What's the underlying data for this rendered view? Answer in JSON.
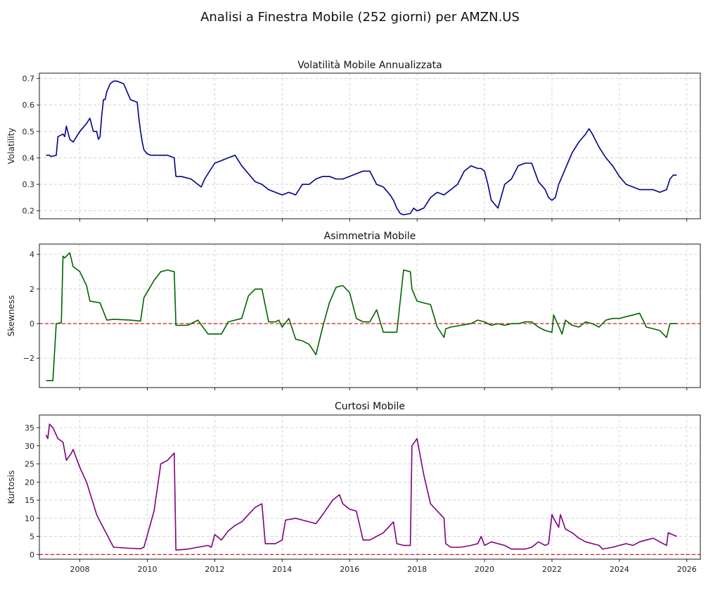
{
  "figure": {
    "title": "Analisi a Finestra Mobile (252 giorni) per AMZN.US"
  },
  "chart_data": [
    {
      "type": "line",
      "title": "Volatilità Mobile Annualizzata",
      "xlabel": "",
      "ylabel": "Volatility",
      "xlim": [
        2006.8,
        2026.4
      ],
      "ylim": [
        0.17,
        0.72
      ],
      "yticks": [
        0.2,
        0.3,
        0.4,
        0.5,
        0.6,
        0.7
      ],
      "ytick_labels": [
        "0.2",
        "0.3",
        "0.4",
        "0.5",
        "0.6",
        "0.7"
      ],
      "xticks": [
        2008,
        2010,
        2012,
        2014,
        2016,
        2018,
        2020,
        2022,
        2024,
        2026
      ],
      "xtick_labels": [],
      "grid": true,
      "color": "#00008b",
      "series": [
        {
          "x": [
            2007.0,
            2007.1,
            2007.15,
            2007.3,
            2007.35,
            2007.5,
            2007.55,
            2007.6,
            2007.7,
            2007.8,
            2007.9,
            2008.0,
            2008.2,
            2008.3,
            2008.4,
            2008.5,
            2008.55,
            2008.6,
            2008.65,
            2008.7,
            2008.75,
            2008.8,
            2008.9,
            2009.0,
            2009.1,
            2009.2,
            2009.3,
            2009.5,
            2009.7,
            2009.75,
            2009.8,
            2009.85,
            2009.9,
            2010.0,
            2010.1,
            2010.2,
            2010.4,
            2010.6,
            2010.8,
            2010.85,
            2011.0,
            2011.3,
            2011.5,
            2011.6,
            2011.7,
            2011.8,
            2012.0,
            2012.2,
            2012.4,
            2012.6,
            2012.8,
            2013.0,
            2013.2,
            2013.4,
            2013.6,
            2013.8,
            2014.0,
            2014.2,
            2014.4,
            2014.6,
            2014.8,
            2015.0,
            2015.2,
            2015.4,
            2015.6,
            2015.8,
            2016.0,
            2016.2,
            2016.4,
            2016.6,
            2016.8,
            2017.0,
            2017.2,
            2017.3,
            2017.4,
            2017.5,
            2017.6,
            2017.8,
            2017.9,
            2018.0,
            2018.2,
            2018.4,
            2018.6,
            2018.8,
            2019.0,
            2019.2,
            2019.4,
            2019.6,
            2019.8,
            2019.9,
            2020.0,
            2020.1,
            2020.2,
            2020.4,
            2020.6,
            2020.8,
            2021.0,
            2021.2,
            2021.4,
            2021.6,
            2021.8,
            2021.9,
            2022.0,
            2022.1,
            2022.2,
            2022.4,
            2022.6,
            2022.8,
            2023.0,
            2023.1,
            2023.2,
            2023.4,
            2023.6,
            2023.8,
            2024.0,
            2024.2,
            2024.4,
            2024.6,
            2024.8,
            2025.0,
            2025.2,
            2025.4,
            2025.5,
            2025.6,
            2025.7
          ],
          "y": [
            0.41,
            0.41,
            0.405,
            0.41,
            0.48,
            0.49,
            0.48,
            0.52,
            0.47,
            0.46,
            0.48,
            0.5,
            0.53,
            0.55,
            0.5,
            0.5,
            0.47,
            0.48,
            0.56,
            0.62,
            0.62,
            0.65,
            0.68,
            0.69,
            0.69,
            0.685,
            0.68,
            0.62,
            0.61,
            0.55,
            0.5,
            0.46,
            0.43,
            0.415,
            0.41,
            0.41,
            0.41,
            0.41,
            0.4,
            0.33,
            0.33,
            0.32,
            0.3,
            0.29,
            0.32,
            0.34,
            0.38,
            0.39,
            0.4,
            0.41,
            0.37,
            0.34,
            0.31,
            0.3,
            0.28,
            0.27,
            0.26,
            0.27,
            0.26,
            0.3,
            0.3,
            0.32,
            0.33,
            0.33,
            0.32,
            0.32,
            0.33,
            0.34,
            0.35,
            0.35,
            0.3,
            0.29,
            0.26,
            0.24,
            0.21,
            0.19,
            0.185,
            0.19,
            0.21,
            0.2,
            0.21,
            0.25,
            0.27,
            0.26,
            0.28,
            0.3,
            0.35,
            0.37,
            0.36,
            0.36,
            0.35,
            0.3,
            0.24,
            0.21,
            0.3,
            0.32,
            0.37,
            0.38,
            0.38,
            0.31,
            0.28,
            0.25,
            0.24,
            0.25,
            0.3,
            0.36,
            0.42,
            0.46,
            0.49,
            0.51,
            0.49,
            0.44,
            0.4,
            0.37,
            0.33,
            0.3,
            0.29,
            0.28,
            0.28,
            0.28,
            0.27,
            0.28,
            0.32,
            0.335,
            0.335
          ]
        }
      ]
    },
    {
      "type": "line",
      "title": "Asimmetria Mobile",
      "xlabel": "",
      "ylabel": "Skewness",
      "xlim": [
        2006.8,
        2026.4
      ],
      "ylim": [
        -3.7,
        4.6
      ],
      "yticks": [
        -2,
        0,
        2,
        4
      ],
      "ytick_labels": [
        "−2",
        "0",
        "2",
        "4"
      ],
      "xticks": [
        2008,
        2010,
        2012,
        2014,
        2016,
        2018,
        2020,
        2022,
        2024,
        2026
      ],
      "xtick_labels": [],
      "grid": true,
      "color": "#006400",
      "reference_line": {
        "y": 0,
        "color": "#e00000",
        "style": "dashed"
      },
      "series": [
        {
          "x": [
            2007.0,
            2007.2,
            2007.3,
            2007.45,
            2007.5,
            2007.55,
            2007.7,
            2007.8,
            2008.0,
            2008.2,
            2008.3,
            2008.6,
            2008.8,
            2009.0,
            2009.5,
            2009.8,
            2009.9,
            2010.2,
            2010.4,
            2010.6,
            2010.8,
            2010.85,
            2011.2,
            2011.5,
            2011.8,
            2012.0,
            2012.2,
            2012.4,
            2012.6,
            2012.8,
            2013.0,
            2013.2,
            2013.4,
            2013.6,
            2013.8,
            2013.9,
            2014.0,
            2014.2,
            2014.4,
            2014.6,
            2014.8,
            2015.0,
            2015.2,
            2015.4,
            2015.6,
            2015.8,
            2016.0,
            2016.2,
            2016.4,
            2016.6,
            2016.8,
            2017.0,
            2017.2,
            2017.4,
            2017.6,
            2017.8,
            2017.85,
            2018.0,
            2018.2,
            2018.4,
            2018.6,
            2018.8,
            2018.85,
            2019.0,
            2019.3,
            2019.6,
            2019.8,
            2020.0,
            2020.2,
            2020.4,
            2020.6,
            2020.8,
            2021.0,
            2021.2,
            2021.4,
            2021.6,
            2021.8,
            2022.0,
            2022.05,
            2022.3,
            2022.4,
            2022.6,
            2022.8,
            2023.0,
            2023.2,
            2023.4,
            2023.6,
            2023.8,
            2024.0,
            2024.2,
            2024.4,
            2024.6,
            2024.8,
            2025.0,
            2025.2,
            2025.4,
            2025.5,
            2025.7
          ],
          "y": [
            -3.3,
            -3.3,
            0.0,
            0.05,
            3.9,
            3.8,
            4.1,
            3.3,
            3.0,
            2.2,
            1.3,
            1.2,
            0.2,
            0.25,
            0.2,
            0.15,
            1.5,
            2.5,
            3.0,
            3.1,
            3.0,
            -0.1,
            -0.1,
            0.2,
            -0.6,
            -0.6,
            -0.6,
            0.1,
            0.2,
            0.3,
            1.6,
            2.0,
            2.0,
            0.1,
            0.1,
            0.2,
            -0.2,
            0.3,
            -0.9,
            -1.0,
            -1.2,
            -1.8,
            -0.2,
            1.2,
            2.1,
            2.2,
            1.8,
            0.3,
            0.1,
            0.1,
            0.8,
            -0.5,
            -0.5,
            -0.5,
            3.1,
            3.0,
            2.0,
            1.3,
            1.2,
            1.1,
            -0.2,
            -0.8,
            -0.3,
            -0.2,
            -0.1,
            0.0,
            0.2,
            0.1,
            -0.1,
            0.0,
            -0.1,
            0.0,
            0.0,
            0.1,
            0.1,
            -0.2,
            -0.4,
            -0.5,
            0.5,
            -0.6,
            0.2,
            -0.1,
            -0.2,
            0.1,
            0.0,
            -0.2,
            0.2,
            0.3,
            0.3,
            0.4,
            0.5,
            0.6,
            -0.2,
            -0.3,
            -0.4,
            -0.8,
            0.0,
            0.0
          ]
        }
      ]
    },
    {
      "type": "line",
      "title": "Curtosi Mobile",
      "xlabel": "",
      "ylabel": "Kurtosis",
      "xlim": [
        2006.8,
        2026.4
      ],
      "ylim": [
        -1.3,
        38.5
      ],
      "yticks": [
        0,
        5,
        10,
        15,
        20,
        25,
        30,
        35
      ],
      "ytick_labels": [
        "0",
        "5",
        "10",
        "15",
        "20",
        "25",
        "30",
        "35"
      ],
      "xticks": [
        2008,
        2010,
        2012,
        2014,
        2016,
        2018,
        2020,
        2022,
        2024,
        2026
      ],
      "xtick_labels": [
        "2008",
        "2010",
        "2012",
        "2014",
        "2016",
        "2018",
        "2020",
        "2022",
        "2024",
        "2026"
      ],
      "grid": true,
      "color": "#800080",
      "reference_line": {
        "y": 0,
        "color": "#e00000",
        "style": "dashed"
      },
      "series": [
        {
          "x": [
            2007.0,
            2007.05,
            2007.1,
            2007.2,
            2007.3,
            2007.35,
            2007.5,
            2007.6,
            2007.75,
            2007.8,
            2008.0,
            2008.2,
            2008.3,
            2008.5,
            2008.55,
            2009.0,
            2009.5,
            2009.8,
            2009.9,
            2010.2,
            2010.4,
            2010.6,
            2010.8,
            2010.85,
            2011.2,
            2011.5,
            2011.8,
            2011.9,
            2012.0,
            2012.2,
            2012.4,
            2012.6,
            2012.8,
            2013.0,
            2013.2,
            2013.4,
            2013.5,
            2013.8,
            2014.0,
            2014.1,
            2014.4,
            2014.6,
            2014.8,
            2015.0,
            2015.2,
            2015.5,
            2015.7,
            2015.8,
            2016.0,
            2016.2,
            2016.4,
            2016.6,
            2016.8,
            2017.0,
            2017.2,
            2017.3,
            2017.4,
            2017.6,
            2017.8,
            2017.85,
            2018.0,
            2018.2,
            2018.4,
            2018.6,
            2018.8,
            2018.85,
            2019.0,
            2019.3,
            2019.6,
            2019.8,
            2019.9,
            2020.0,
            2020.2,
            2020.4,
            2020.6,
            2020.8,
            2021.0,
            2021.2,
            2021.4,
            2021.6,
            2021.8,
            2021.9,
            2022.0,
            2022.05,
            2022.2,
            2022.25,
            2022.4,
            2022.6,
            2022.8,
            2023.0,
            2023.2,
            2023.4,
            2023.5,
            2023.8,
            2024.0,
            2024.2,
            2024.4,
            2024.6,
            2024.8,
            2025.0,
            2025.2,
            2025.4,
            2025.45,
            2025.7
          ],
          "y": [
            33.0,
            32.0,
            36.0,
            35.0,
            33.0,
            32.0,
            31.0,
            26.0,
            28.0,
            29.0,
            24.0,
            20.0,
            17.0,
            11.0,
            10.0,
            2.0,
            1.7,
            1.6,
            2.0,
            12.0,
            25.0,
            26.0,
            28.0,
            1.2,
            1.5,
            2.0,
            2.5,
            2.0,
            5.5,
            4.0,
            6.5,
            8.0,
            9.0,
            11.0,
            13.0,
            14.0,
            3.0,
            3.0,
            4.0,
            9.5,
            10.0,
            9.5,
            9.0,
            8.5,
            11.0,
            15.0,
            16.5,
            14.0,
            12.5,
            12.0,
            4.0,
            4.0,
            5.0,
            6.0,
            8.0,
            9.0,
            3.0,
            2.5,
            2.5,
            30.0,
            32.0,
            22.0,
            14.0,
            12.0,
            10.0,
            3.0,
            2.0,
            2.0,
            2.5,
            3.0,
            5.0,
            2.5,
            3.5,
            3.0,
            2.5,
            1.5,
            1.5,
            1.5,
            2.0,
            3.5,
            2.5,
            3.0,
            11.0,
            10.0,
            7.5,
            11.0,
            7.0,
            6.0,
            4.5,
            3.5,
            3.0,
            2.5,
            1.5,
            2.0,
            2.5,
            3.0,
            2.5,
            3.5,
            4.0,
            4.5,
            3.5,
            2.5,
            6.0,
            5.0
          ]
        }
      ]
    }
  ]
}
